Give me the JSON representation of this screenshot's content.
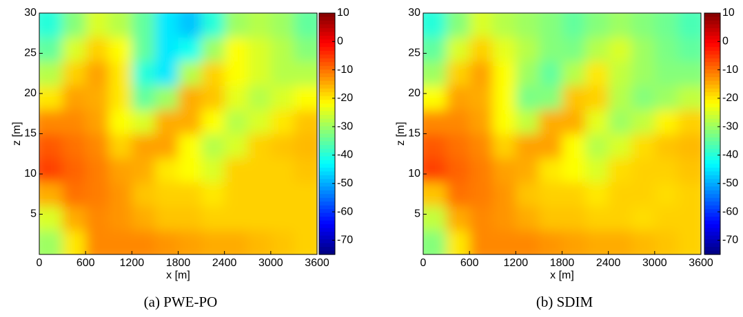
{
  "chart_data": [
    {
      "type": "heatmap",
      "caption": "(a) PWE-PO",
      "xlabel": "x [m]",
      "ylabel": "z [m]",
      "colormap": "jet",
      "x": [
        150,
        450,
        750,
        1050,
        1350,
        1650,
        1950,
        2250,
        2550,
        2850,
        3150,
        3450
      ],
      "y": [
        1.5,
        4.5,
        7.5,
        10.5,
        13.5,
        16.5,
        19.5,
        22.5,
        25.5,
        28.5
      ],
      "values": [
        [
          -30,
          -20,
          -12,
          -12,
          -12,
          -13,
          -14,
          -15,
          -15,
          -16,
          -17,
          -18
        ],
        [
          -25,
          -15,
          -12,
          -13,
          -15,
          -17,
          -17,
          -18,
          -18,
          -18,
          -18,
          -18
        ],
        [
          -15,
          -10,
          -11,
          -13,
          -17,
          -18,
          -18,
          -20,
          -18,
          -18,
          -18,
          -18
        ],
        [
          -6,
          -9,
          -11,
          -14,
          -15,
          -20,
          -22,
          -25,
          -18,
          -18,
          -18,
          -17
        ],
        [
          -8,
          -10,
          -12,
          -18,
          -14,
          -14,
          -22,
          -28,
          -25,
          -18,
          -17,
          -16
        ],
        [
          -12,
          -12,
          -14,
          -22,
          -25,
          -15,
          -15,
          -22,
          -28,
          -25,
          -20,
          -17
        ],
        [
          -20,
          -14,
          -15,
          -20,
          -35,
          -30,
          -15,
          -17,
          -24,
          -28,
          -25,
          -22
        ],
        [
          -28,
          -18,
          -14,
          -20,
          -40,
          -45,
          -28,
          -18,
          -22,
          -25,
          -28,
          -28
        ],
        [
          -35,
          -25,
          -18,
          -22,
          -35,
          -45,
          -42,
          -30,
          -22,
          -25,
          -28,
          -32
        ],
        [
          -40,
          -32,
          -25,
          -28,
          -35,
          -45,
          -48,
          -40,
          -30,
          -28,
          -30,
          -35
        ]
      ],
      "xlim": [
        0,
        3600
      ],
      "xticks": [
        0,
        600,
        1200,
        1800,
        2400,
        3000,
        3600
      ],
      "ylim": [
        0,
        30
      ],
      "yticks": [
        5,
        10,
        15,
        20,
        25,
        30
      ],
      "clim": [
        -75,
        10
      ],
      "cticks": [
        10,
        0,
        -10,
        -20,
        -30,
        -40,
        -50,
        -60,
        -70
      ]
    },
    {
      "type": "heatmap",
      "caption": "(b) SDIM",
      "xlabel": "x [m]",
      "ylabel": "z [m]",
      "colormap": "jet",
      "x": [
        150,
        450,
        750,
        1050,
        1350,
        1650,
        1950,
        2250,
        2550,
        2850,
        3150,
        3450
      ],
      "y": [
        1.5,
        4.5,
        7.5,
        10.5,
        13.5,
        16.5,
        19.5,
        22.5,
        25.5,
        28.5
      ],
      "values": [
        [
          -32,
          -20,
          -12,
          -12,
          -12,
          -13,
          -14,
          -15,
          -15,
          -16,
          -17,
          -18
        ],
        [
          -27,
          -15,
          -12,
          -13,
          -15,
          -17,
          -17,
          -18,
          -18,
          -19,
          -18,
          -18
        ],
        [
          -17,
          -10,
          -11,
          -13,
          -17,
          -18,
          -18,
          -20,
          -18,
          -18,
          -19,
          -18
        ],
        [
          -6,
          -9,
          -11,
          -14,
          -15,
          -20,
          -22,
          -25,
          -19,
          -18,
          -18,
          -17
        ],
        [
          -8,
          -10,
          -12,
          -18,
          -14,
          -14,
          -22,
          -28,
          -25,
          -19,
          -17,
          -16
        ],
        [
          -12,
          -12,
          -14,
          -22,
          -27,
          -15,
          -15,
          -24,
          -30,
          -27,
          -21,
          -18
        ],
        [
          -22,
          -14,
          -15,
          -22,
          -33,
          -32,
          -17,
          -18,
          -28,
          -32,
          -30,
          -27
        ],
        [
          -30,
          -18,
          -14,
          -22,
          -30,
          -35,
          -28,
          -20,
          -27,
          -30,
          -32,
          -32
        ],
        [
          -35,
          -25,
          -18,
          -24,
          -28,
          -32,
          -33,
          -28,
          -25,
          -30,
          -33,
          -35
        ],
        [
          -40,
          -32,
          -25,
          -28,
          -30,
          -32,
          -35,
          -32,
          -30,
          -32,
          -34,
          -37
        ]
      ],
      "xlim": [
        0,
        3600
      ],
      "xticks": [
        0,
        600,
        1200,
        1800,
        2400,
        3000,
        3600
      ],
      "ylim": [
        0,
        30
      ],
      "yticks": [
        5,
        10,
        15,
        20,
        25,
        30
      ],
      "clim": [
        -75,
        10
      ],
      "cticks": [
        10,
        0,
        -10,
        -20,
        -30,
        -40,
        -50,
        -60,
        -70
      ]
    }
  ]
}
